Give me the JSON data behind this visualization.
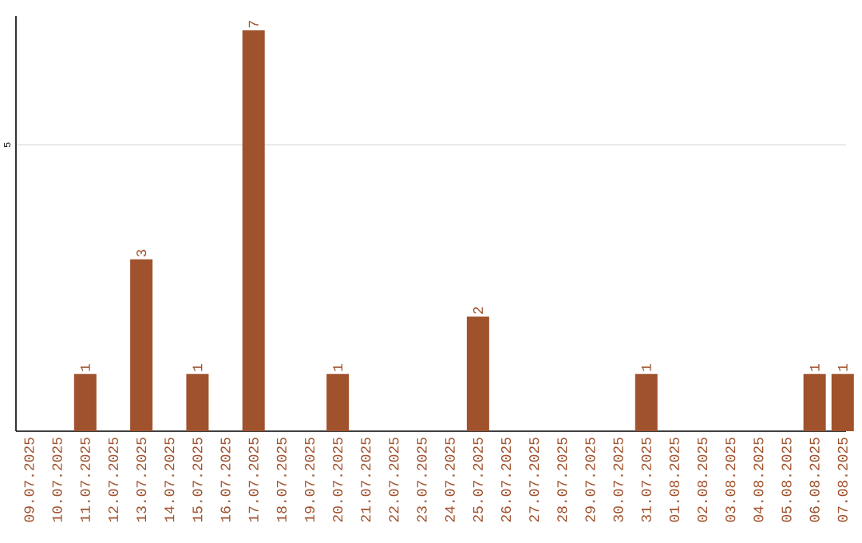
{
  "chart_data": {
    "type": "bar",
    "categories": [
      "09.07.2025",
      "10.07.2025",
      "11.07.2025",
      "12.07.2025",
      "13.07.2025",
      "14.07.2025",
      "15.07.2025",
      "16.07.2025",
      "17.07.2025",
      "18.07.2025",
      "19.07.2025",
      "20.07.2025",
      "21.07.2025",
      "22.07.2025",
      "23.07.2025",
      "24.07.2025",
      "25.07.2025",
      "26.07.2025",
      "27.07.2025",
      "28.07.2025",
      "29.07.2025",
      "30.07.2025",
      "31.07.2025",
      "01.08.2025",
      "02.08.2025",
      "03.08.2025",
      "04.08.2025",
      "05.08.2025",
      "06.08.2025",
      "07.08.2025"
    ],
    "values": [
      0,
      0,
      1,
      0,
      3,
      0,
      1,
      0,
      7,
      0,
      0,
      1,
      0,
      0,
      0,
      0,
      2,
      0,
      0,
      0,
      0,
      0,
      1,
      0,
      0,
      0,
      0,
      0,
      1,
      1
    ],
    "value_labels": [
      null,
      null,
      "1",
      null,
      "3",
      null,
      "1",
      null,
      "7",
      null,
      null,
      "1",
      null,
      null,
      null,
      null,
      "2",
      null,
      null,
      null,
      null,
      null,
      "1",
      null,
      null,
      null,
      null,
      null,
      "1",
      "1"
    ],
    "color": "#a0522d",
    "ylim": [
      0,
      7.25
    ],
    "yticks": [
      5
    ],
    "grid": "y"
  }
}
